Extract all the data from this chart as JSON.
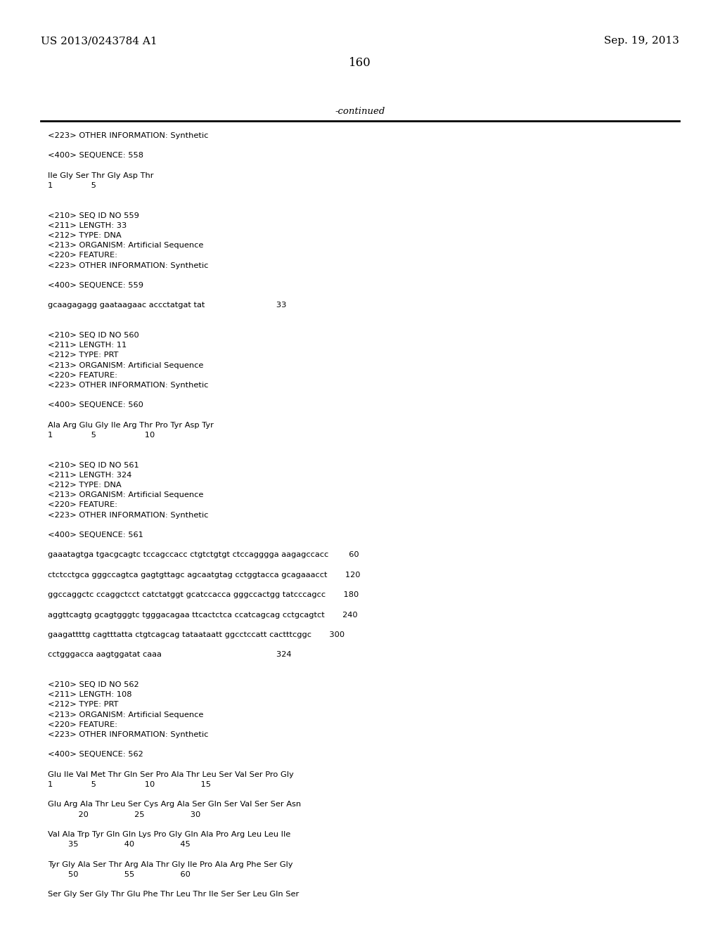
{
  "background_color": "#ffffff",
  "top_left_text": "US 2013/0243784 A1",
  "top_right_text": "Sep. 19, 2013",
  "page_number": "160",
  "continued_text": "-continued",
  "content_lines": [
    "<223> OTHER INFORMATION: Synthetic",
    "",
    "<400> SEQUENCE: 558",
    "",
    "Ile Gly Ser Thr Gly Asp Thr",
    "1               5",
    "",
    "",
    "<210> SEQ ID NO 559",
    "<211> LENGTH: 33",
    "<212> TYPE: DNA",
    "<213> ORGANISM: Artificial Sequence",
    "<220> FEATURE:",
    "<223> OTHER INFORMATION: Synthetic",
    "",
    "<400> SEQUENCE: 559",
    "",
    "gcaagagagg gaataagaac accctatgat tat                            33",
    "",
    "",
    "<210> SEQ ID NO 560",
    "<211> LENGTH: 11",
    "<212> TYPE: PRT",
    "<213> ORGANISM: Artificial Sequence",
    "<220> FEATURE:",
    "<223> OTHER INFORMATION: Synthetic",
    "",
    "<400> SEQUENCE: 560",
    "",
    "Ala Arg Glu Gly Ile Arg Thr Pro Tyr Asp Tyr",
    "1               5                   10",
    "",
    "",
    "<210> SEQ ID NO 561",
    "<211> LENGTH: 324",
    "<212> TYPE: DNA",
    "<213> ORGANISM: Artificial Sequence",
    "<220> FEATURE:",
    "<223> OTHER INFORMATION: Synthetic",
    "",
    "<400> SEQUENCE: 561",
    "",
    "gaaatagtga tgacgcagtc tccagccacc ctgtctgtgt ctccagggga aagagccacc        60",
    "",
    "ctctcctgca gggccagtca gagtgttagc agcaatgtag cctggtacca gcagaaacct       120",
    "",
    "ggccaggctc ccaggctcct catctatggt gcatccacca gggccactgg tatcccagcc       180",
    "",
    "aggttcagtg gcagtgggtc tgggacagaa ttcactctca ccatcagcag cctgcagtct       240",
    "",
    "gaagattttg cagtttatta ctgtcagcag tataataatt ggcctccatt cactttcggc       300",
    "",
    "cctgggacca aagtggatat caaa                                             324",
    "",
    "",
    "<210> SEQ ID NO 562",
    "<211> LENGTH: 108",
    "<212> TYPE: PRT",
    "<213> ORGANISM: Artificial Sequence",
    "<220> FEATURE:",
    "<223> OTHER INFORMATION: Synthetic",
    "",
    "<400> SEQUENCE: 562",
    "",
    "Glu Ile Val Met Thr Gln Ser Pro Ala Thr Leu Ser Val Ser Pro Gly",
    "1               5                   10                  15",
    "",
    "Glu Arg Ala Thr Leu Ser Cys Arg Ala Ser Gln Ser Val Ser Ser Asn",
    "            20                  25                  30",
    "",
    "Val Ala Trp Tyr Gln Gln Lys Pro Gly Gln Ala Pro Arg Leu Leu Ile",
    "        35                  40                  45",
    "",
    "Tyr Gly Ala Ser Thr Arg Ala Thr Gly Ile Pro Ala Arg Phe Ser Gly",
    "        50                  55                  60",
    "",
    "Ser Gly Ser Gly Thr Glu Phe Thr Leu Thr Ile Ser Ser Leu Gln Ser"
  ]
}
